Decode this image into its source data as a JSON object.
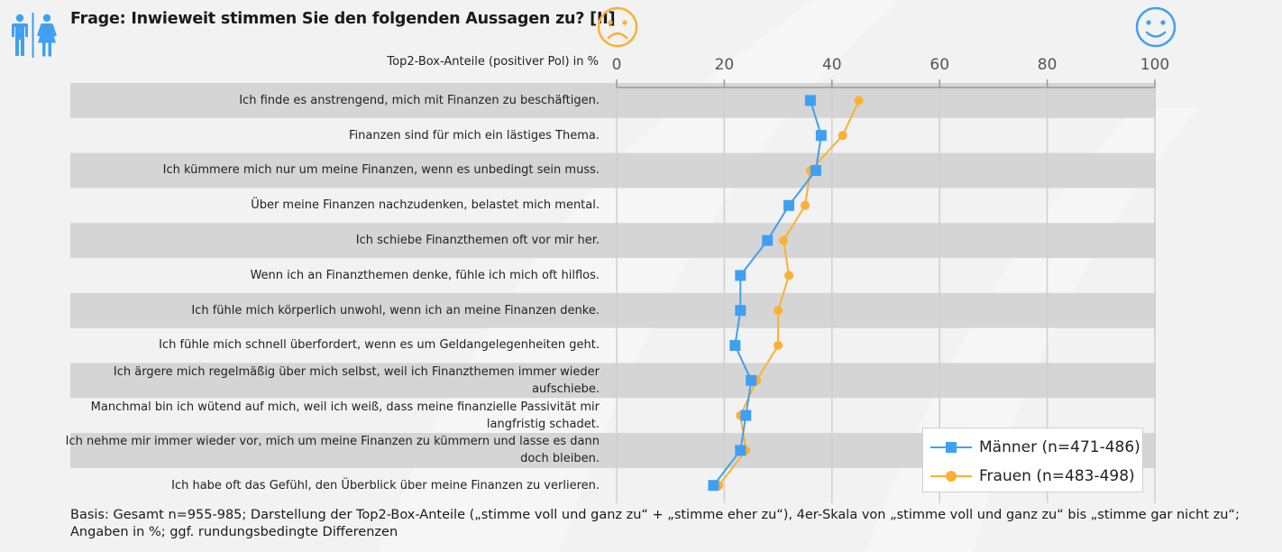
{
  "header": {
    "title": "Frage: Inwieweit stimmen Sie den folgenden Aussagen zu? [II]",
    "axis_caption": "Top2-Box-Anteile (positiver Pol) in %",
    "icons": {
      "gender": "men-women-icon",
      "negative_pole": "sad-face-icon",
      "positive_pole": "happy-face-icon"
    }
  },
  "colors": {
    "maenner": "#3fa0f2",
    "frauen": "#fbb034",
    "band": "#d5d5d5",
    "background": "#f2f2f2",
    "grid": "#cfcfcf",
    "axis": "#999999"
  },
  "legend": {
    "items": [
      {
        "label": "Männer (n=471-486)",
        "marker": "square"
      },
      {
        "label": "Frauen (n=483-498)",
        "marker": "circle"
      }
    ]
  },
  "chart_data": {
    "type": "line",
    "title": "Frage: Inwieweit stimmen Sie den folgenden Aussagen zu? [II]",
    "xlabel": "Top2-Box-Anteile (positiver Pol) in %",
    "ylabel": "",
    "xlim": [
      0,
      100
    ],
    "xticks": [
      0,
      20,
      40,
      60,
      80,
      100
    ],
    "grid": true,
    "legend_position": "bottom-right",
    "orientation": "horizontal-categories",
    "categories": [
      "Ich finde es anstrengend, mich mit Finanzen zu beschäftigen.",
      "Finanzen sind für mich ein lästiges Thema.",
      "Ich kümmere mich nur um meine Finanzen, wenn es unbedingt sein muss.",
      "Über meine Finanzen nachzudenken, belastet mich mental.",
      "Ich schiebe Finanzthemen oft vor mir her.",
      "Wenn ich an Finanzthemen denke, fühle ich mich oft hilflos.",
      "Ich fühle mich körperlich unwohl, wenn ich an meine Finanzen denke.",
      "Ich fühle mich schnell überfordert, wenn es um Geldangelegenheiten geht.",
      "Ich ärgere mich regelmäßig über mich selbst, weil ich Finanzthemen immer wieder aufschiebe.",
      "Manchmal bin ich wütend auf mich, weil ich weiß, dass meine finanzielle Passivität mir langfristig schadet.",
      "Ich nehme mir immer wieder vor, mich um meine Finanzen zu kümmern und lasse es dann doch bleiben.",
      "Ich habe oft das Gefühl, den Überblick über meine Finanzen zu verlieren."
    ],
    "series": [
      {
        "name": "Männer (n=471-486)",
        "marker": "square",
        "values": [
          36,
          38,
          37,
          32,
          28,
          23,
          23,
          22,
          25,
          24,
          23,
          18
        ]
      },
      {
        "name": "Frauen (n=483-498)",
        "marker": "circle",
        "values": [
          45,
          42,
          36,
          35,
          31,
          32,
          30,
          30,
          26,
          23,
          24,
          19
        ]
      }
    ]
  },
  "footnote": "Basis: Gesamt n=955-985; Darstellung der Top2-Box-Anteile („stimme voll und ganz zu“ + „stimme eher zu“), 4er-Skala von „stimme voll und ganz zu“ bis „stimme gar nicht zu“; Angaben in %; ggf. rundungsbedingte Differenzen"
}
